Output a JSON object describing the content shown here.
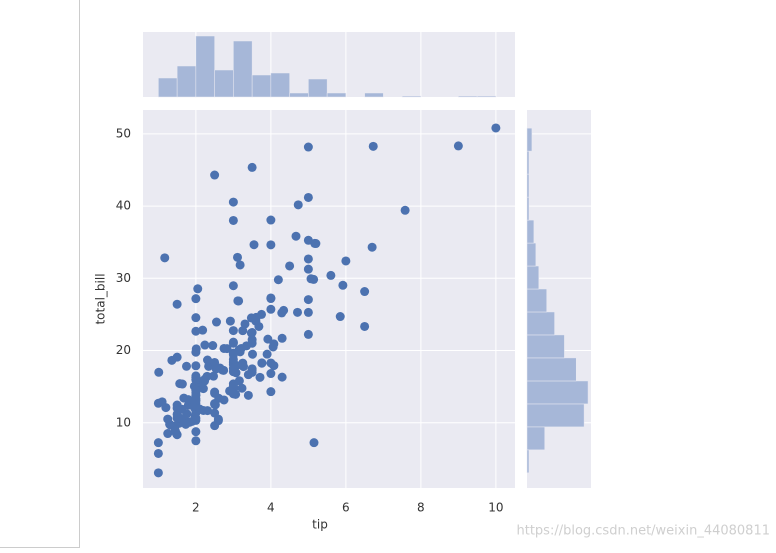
{
  "chart_data": [
    {
      "type": "scatter",
      "xlabel": "tip",
      "ylabel": "total_bill",
      "color": "#4c72b0",
      "xlim": [
        0.59,
        10.51
      ],
      "ylim": [
        0.97,
        53.3
      ],
      "xticks": [
        2,
        4,
        6,
        8,
        10
      ],
      "yticks": [
        10,
        20,
        30,
        40,
        50
      ],
      "grid": true,
      "x": [
        1.01,
        1.66,
        3.5,
        3.31,
        3.61,
        4.71,
        2,
        3.12,
        1.96,
        3.23,
        1.71,
        5,
        1.57,
        3,
        3.02,
        3.92,
        1.67,
        3.71,
        3.5,
        3.35,
        4.08,
        2.75,
        2.23,
        7.58,
        3.18,
        2.34,
        2,
        2,
        4.3,
        3,
        1.45,
        2.5,
        3,
        2.45,
        3.27,
        3.6,
        2,
        3.07,
        2.31,
        5,
        2.24,
        2.54,
        3.06,
        1.32,
        5.6,
        3,
        5,
        6,
        2.05,
        3,
        2.5,
        2.6,
        5.2,
        1.56,
        4.34,
        3.51,
        3,
        1.5,
        1.76,
        6.73,
        3.21,
        2,
        1.98,
        3.76,
        2.64,
        3.15,
        2.47,
        1,
        2.01,
        2.09,
        1.97,
        3,
        3.14,
        5,
        2.2,
        1.25,
        3.08,
        4,
        3,
        2.71,
        3,
        3.4,
        1.83,
        5,
        2.03,
        5.17,
        2,
        4,
        5.85,
        3,
        3,
        3.5,
        1,
        4.3,
        3.25,
        4.73,
        4,
        1.5,
        3,
        1.5,
        2.5,
        3,
        2.5,
        3.48,
        4.08,
        1.64,
        4.06,
        4.29,
        3.76,
        4,
        3,
        1,
        4,
        2.55,
        4,
        3.5,
        5.07,
        1.5,
        1.8,
        2.92,
        2.31,
        1.68,
        2.5,
        2,
        2.52,
        4.2,
        1.48,
        2,
        2,
        2.18,
        1.5,
        2.83,
        1.5,
        2,
        3.25,
        1.25,
        2,
        2,
        2,
        2.75,
        3.5,
        6.7,
        5,
        5,
        2.3,
        1.5,
        1.36,
        1.63,
        1.73,
        2,
        2.5,
        2,
        2.74,
        2,
        2,
        5.14,
        5,
        3.75,
        2.61,
        2,
        3.5,
        2.5,
        2,
        2,
        3,
        3.48,
        2.24,
        4.5,
        1.61,
        2,
        10,
        3.16,
        5.15,
        3.18,
        4,
        3.11,
        2,
        2,
        4,
        3.55,
        3.68,
        3.5,
        9,
        1.17,
        4.67,
        5.92,
        2,
        2,
        1.75,
        3,
        6.5,
        6.5,
        3,
        2.5,
        1.1,
        1.3,
        1.45,
        2.2,
        1.9,
        2.6,
        1.8,
        3.9,
        2.9,
        1.9,
        2.1,
        3.4,
        1.2,
        1.0
      ],
      "y": [
        16.99,
        10.34,
        21.01,
        23.68,
        24.59,
        25.29,
        8.77,
        26.88,
        15.04,
        14.78,
        10.27,
        35.26,
        15.42,
        18.43,
        14.83,
        21.58,
        10.33,
        16.29,
        16.97,
        20.65,
        17.92,
        20.29,
        15.77,
        39.42,
        19.82,
        17.81,
        13.37,
        12.69,
        21.7,
        19.65,
        9.55,
        18.35,
        15.06,
        20.69,
        17.78,
        24.06,
        16.31,
        16.93,
        18.69,
        31.27,
        16.04,
        17.46,
        13.94,
        9.68,
        30.4,
        18.29,
        22.23,
        32.4,
        28.55,
        18.04,
        12.54,
        10.29,
        34.81,
        9.94,
        25.56,
        19.49,
        38.01,
        26.41,
        11.24,
        48.27,
        20.29,
        13.81,
        11.02,
        18.29,
        17.59,
        20.08,
        16.45,
        3.07,
        20.23,
        15.01,
        12.02,
        17.07,
        26.86,
        25.28,
        14.73,
        10.51,
        17.92,
        27.2,
        22.76,
        17.29,
        19.44,
        16.66,
        10.07,
        32.68,
        15.98,
        34.83,
        13.03,
        18.28,
        24.71,
        21.16,
        28.97,
        22.49,
        5.75,
        16.32,
        22.75,
        40.17,
        27.28,
        12.03,
        21.01,
        12.46,
        11.35,
        15.38,
        44.3,
        22.42,
        20.92,
        15.36,
        20.49,
        25.21,
        18.24,
        14.31,
        14,
        7.25,
        38.07,
        23.95,
        25.71,
        17.31,
        29.93,
        10.65,
        12.43,
        24.08,
        11.69,
        13.42,
        14.26,
        15.95,
        12.48,
        29.8,
        8.52,
        14.52,
        11.38,
        22.82,
        19.08,
        20.27,
        11.17,
        12.26,
        18.26,
        8.51,
        10.33,
        14.15,
        16,
        13.16,
        17.47,
        34.3,
        41.19,
        27.05,
        16.43,
        8.35,
        18.64,
        11.87,
        9.78,
        7.51,
        14.07,
        13.13,
        17.26,
        24.55,
        19.77,
        29.85,
        48.17,
        25,
        13.39,
        16.49,
        21.5,
        12.66,
        16.21,
        13.81,
        17.51,
        24.52,
        20.76,
        31.71,
        10.59,
        10.63,
        50.81,
        15.81,
        7.25,
        31.85,
        16.82,
        32.9,
        17.89,
        14.48,
        34.63,
        34.65,
        23.33,
        45.35,
        48.33,
        32.83,
        35.83,
        29.03,
        27.18,
        22.67,
        17.82,
        18.78,
        28.17,
        23.33,
        40.55,
        9.6,
        12.9,
        9.8,
        8.9,
        11.7,
        12.8,
        10.5,
        13.2,
        19.5,
        14.4,
        10.2,
        11.9,
        13.8,
        12.1,
        12.7
      ]
    },
    {
      "type": "histogram",
      "orientation": "vertical",
      "color": "#a6b7d8",
      "bins": [
        1,
        1.5,
        2,
        2.5,
        3,
        3.5,
        4,
        4.5,
        5,
        5.5,
        6,
        6.5,
        7,
        7.5,
        8,
        8.5,
        9,
        9.5,
        10
      ],
      "values": [
        19,
        31,
        61,
        27,
        56,
        22,
        24,
        4,
        18,
        4,
        0,
        4,
        0,
        1,
        0,
        0,
        1,
        1
      ],
      "xlim": [
        0.59,
        10.51
      ],
      "ylim": [
        0,
        65
      ]
    },
    {
      "type": "histogram",
      "orientation": "horizontal",
      "color": "#a6b7d8",
      "bins": [
        3.07,
        6.25,
        9.43,
        12.61,
        15.79,
        18.98,
        22.16,
        25.34,
        28.52,
        31.7,
        34.88,
        38.06,
        41.24,
        44.43,
        47.61,
        50.79
      ],
      "values": [
        2,
        18,
        58,
        62,
        50,
        38,
        28,
        20,
        12,
        9,
        7,
        2,
        2,
        2,
        5
      ],
      "ylim": [
        0.97,
        53.3
      ],
      "xlim": [
        0,
        65
      ]
    }
  ],
  "watermark": "https://blog.csdn.net/weixin_44080811"
}
